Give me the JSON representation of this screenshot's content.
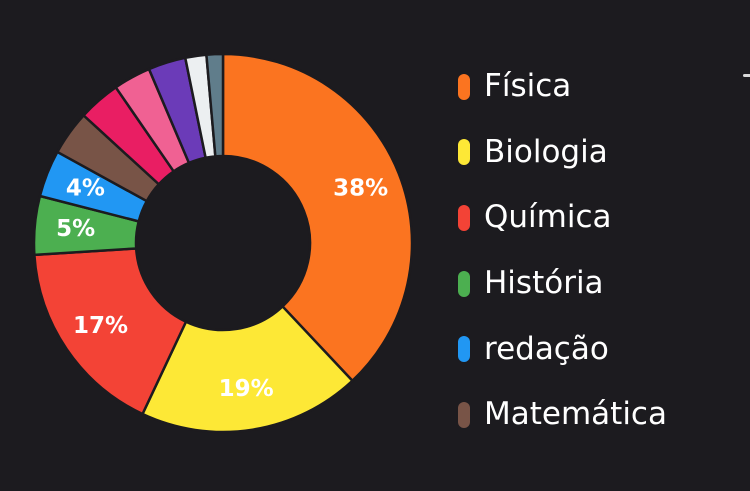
{
  "chart_data": {
    "type": "pie",
    "donut": true,
    "title": "",
    "slices": [
      {
        "name": "Física",
        "value": 38,
        "color": "#fb7420",
        "label": "38%"
      },
      {
        "name": "Biologia",
        "value": 19,
        "color": "#fde836",
        "label": "19%"
      },
      {
        "name": "Química",
        "value": 17,
        "color": "#f34336",
        "label": "17%"
      },
      {
        "name": "História",
        "value": 5,
        "color": "#4caf50",
        "label": "5%"
      },
      {
        "name": "redação",
        "value": 4,
        "color": "#2197f3",
        "label": "4%"
      },
      {
        "name": "Matemática",
        "value": 3.8,
        "color": "#785447",
        "label": ""
      },
      {
        "name": "",
        "value": 3.6,
        "color": "#e91e63",
        "label": ""
      },
      {
        "name": "",
        "value": 3.2,
        "color": "#f06193",
        "label": ""
      },
      {
        "name": "",
        "value": 3.2,
        "color": "#6b3bb8",
        "label": ""
      },
      {
        "name": "",
        "value": 1.8,
        "color": "#eceff1",
        "label": ""
      },
      {
        "name": "",
        "value": 1.4,
        "color": "#607d8b",
        "label": ""
      }
    ],
    "legend_entries": [
      {
        "name": "Física",
        "color": "#fb7420"
      },
      {
        "name": "Biologia",
        "color": "#fde836"
      },
      {
        "name": "Química",
        "color": "#f34336"
      },
      {
        "name": "História",
        "color": "#4caf50"
      },
      {
        "name": "redação",
        "color": "#2197f3"
      },
      {
        "name": "Matemática",
        "color": "#785447"
      }
    ],
    "legend_position": "right"
  }
}
